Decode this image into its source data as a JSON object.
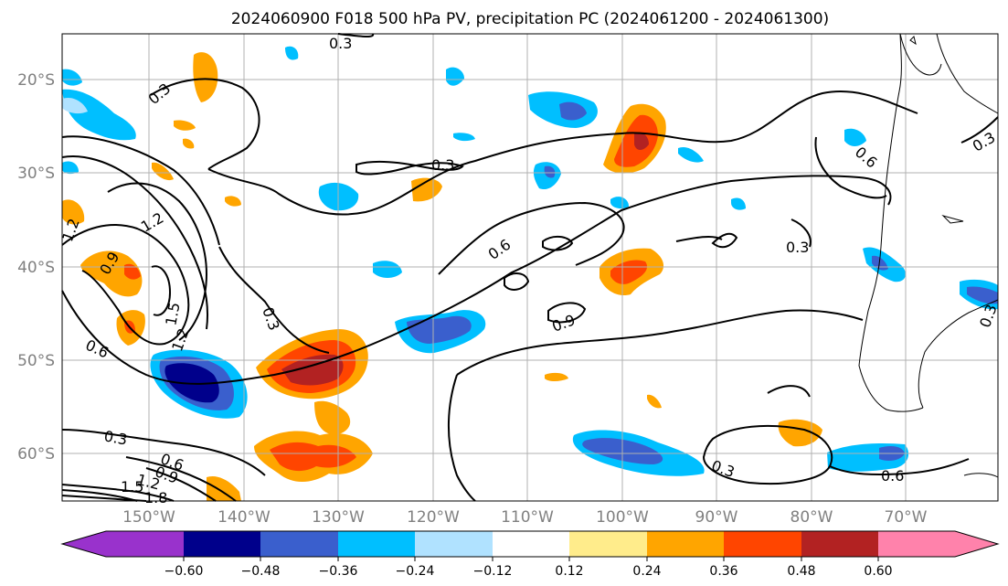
{
  "title": "2024060900 F018 500 hPa PV, precipitation PC (2024061200 - 2024061300)",
  "lat_labels": [
    "20°S",
    "30°S",
    "40°S",
    "50°S",
    "60°S"
  ],
  "lon_labels": [
    "150°W",
    "140°W",
    "130°W",
    "120°W",
    "110°W",
    "100°W",
    "90°W",
    "80°W",
    "70°W"
  ],
  "colorbar": {
    "ticks": [
      "−0.60",
      "−0.48",
      "−0.36",
      "−0.24",
      "−0.12",
      "0.12",
      "0.24",
      "0.36",
      "0.48",
      "0.60"
    ],
    "colors": [
      "#9932cc",
      "#00008b",
      "#3a5fcd",
      "#00bfff",
      "#b0e2ff",
      "#ffffff",
      "#ffec8b",
      "#ffa500",
      "#ff4500",
      "#b22222",
      "#ff82ab"
    ]
  },
  "contour_labels": [
    "0.3",
    "0.3",
    "0.3",
    "0.3",
    "0.3",
    "0.3",
    "0.3",
    "0.3",
    "0.3",
    "0.6",
    "0.6",
    "0.6",
    "0.6",
    "0.6",
    "0.9",
    "0.9",
    "0.9",
    "1.2",
    "1.2",
    "1.2",
    "1.2",
    "1.5",
    "1.5",
    "1.8"
  ]
}
